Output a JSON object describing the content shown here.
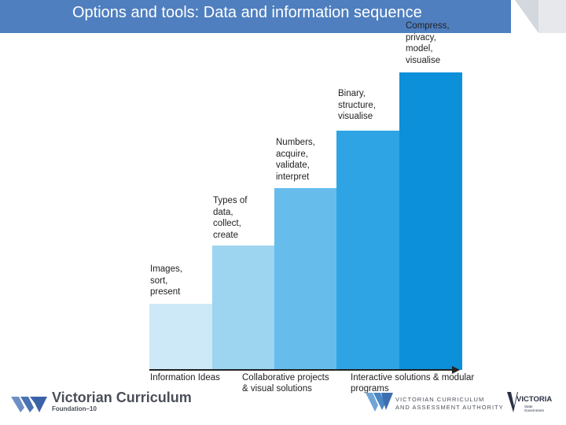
{
  "title": "Options and tools: Data and information sequence",
  "colors": {
    "title_bar": "#4f7fbf",
    "step1": "#cde8f6",
    "step2": "#9dd4f0",
    "step3": "#66bdec",
    "step4": "#2ea4e4",
    "step5": "#0c90da"
  },
  "steps": [
    {
      "label": "Images,\nsort,\npresent",
      "level": 1
    },
    {
      "label": "Types of\ndata,\ncollect,\ncreate",
      "level": 2
    },
    {
      "label": "Numbers,\nacquire,\nvalidate,\ninterpret",
      "level": 3
    },
    {
      "label": "Binary,\nstructure,\nvisualise",
      "level": 4
    },
    {
      "label": "Compress,\nprivacy,\nmodel,\nvisualise",
      "level": 5
    }
  ],
  "axis_labels": {
    "left": "Information Ideas",
    "middle": "Collaborative projects\n& visual solutions",
    "right": "Interactive solutions & modular\nprograms"
  },
  "logos": {
    "vc_name": "Victorian Curriculum",
    "vc_sub": "Foundation–10",
    "vcaa_line1": "VICTORIAN CURRICULUM",
    "vcaa_line2": "AND ASSESSMENT AUTHORITY",
    "vic_name": "VICTORIA",
    "vic_sub": "State Government"
  }
}
